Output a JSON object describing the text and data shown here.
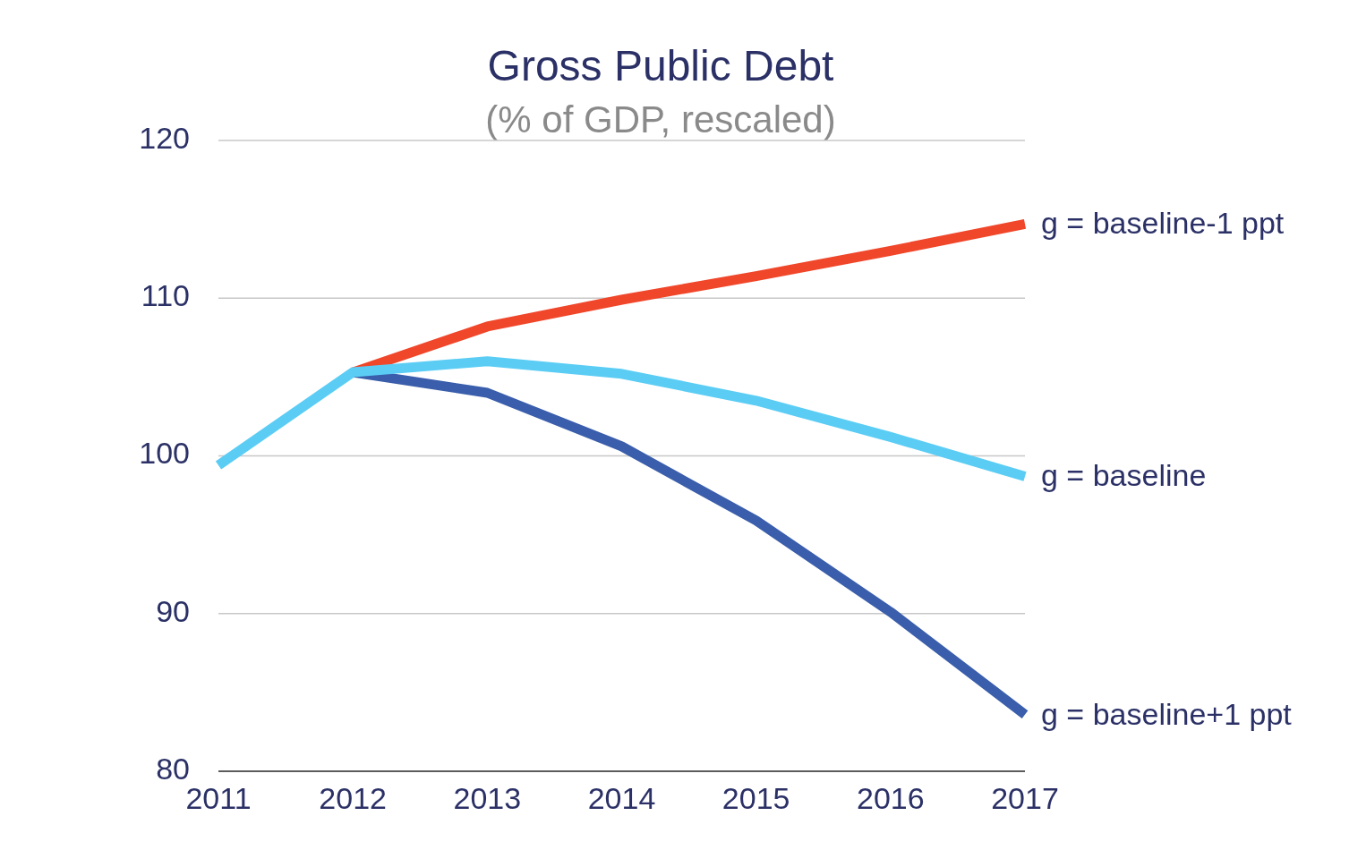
{
  "chart_data": {
    "type": "line",
    "title": "Gross Public Debt",
    "subtitle": "(% of GDP, rescaled)",
    "categories": [
      "2011",
      "2012",
      "2013",
      "2014",
      "2015",
      "2016",
      "2017"
    ],
    "series": [
      {
        "name": "g = baseline+1 ppt",
        "color": "#3a5eab",
        "values": [
          null,
          105.3,
          104.0,
          100.6,
          95.9,
          90.1,
          83.6
        ]
      },
      {
        "name": "g = baseline-1 ppt",
        "color": "#f0462a",
        "values": [
          null,
          105.3,
          108.2,
          109.9,
          111.4,
          113.0,
          114.7
        ]
      },
      {
        "name": "g = baseline",
        "color": "#5bcdf5",
        "values": [
          99.4,
          105.3,
          106.0,
          105.2,
          103.5,
          101.2,
          98.7
        ]
      }
    ],
    "ylim": [
      80,
      120
    ],
    "yticks": [
      80,
      90,
      100,
      110,
      120
    ],
    "grid": "y",
    "legend": false,
    "marker": "none",
    "line_style": "solid"
  }
}
